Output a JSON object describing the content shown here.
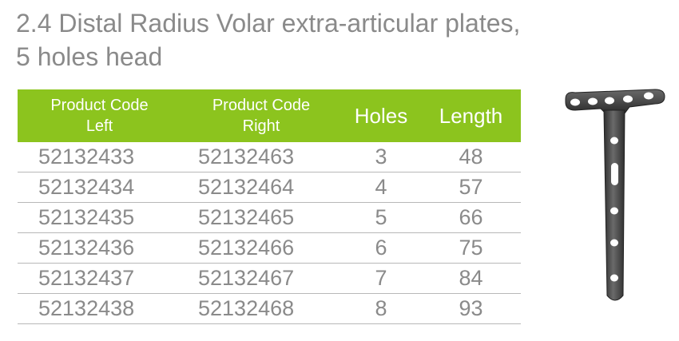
{
  "title": {
    "line1": "2.4 Distal Radius Volar extra-articular plates,",
    "line2": "5 holes head"
  },
  "table": {
    "headers": {
      "code_left_1": "Product Code",
      "code_left_2": "Left",
      "code_right_1": "Product Code",
      "code_right_2": "Right",
      "holes": "Holes",
      "length": "Length"
    },
    "rows": [
      {
        "left": "52132433",
        "right": "52132463",
        "holes": "3",
        "length": "48"
      },
      {
        "left": "52132434",
        "right": "52132464",
        "holes": "4",
        "length": "57"
      },
      {
        "left": "52132435",
        "right": "52132465",
        "holes": "5",
        "length": "66"
      },
      {
        "left": "52132436",
        "right": "52132466",
        "holes": "6",
        "length": "75"
      },
      {
        "left": "52132437",
        "right": "52132467",
        "holes": "7",
        "length": "84"
      },
      {
        "left": "52132438",
        "right": "52132468",
        "holes": "8",
        "length": "93"
      }
    ]
  },
  "colors": {
    "header_bg": "#8cc41e",
    "text_gray": "#8a8a8a",
    "plate_metal": "#4a4a4a"
  }
}
